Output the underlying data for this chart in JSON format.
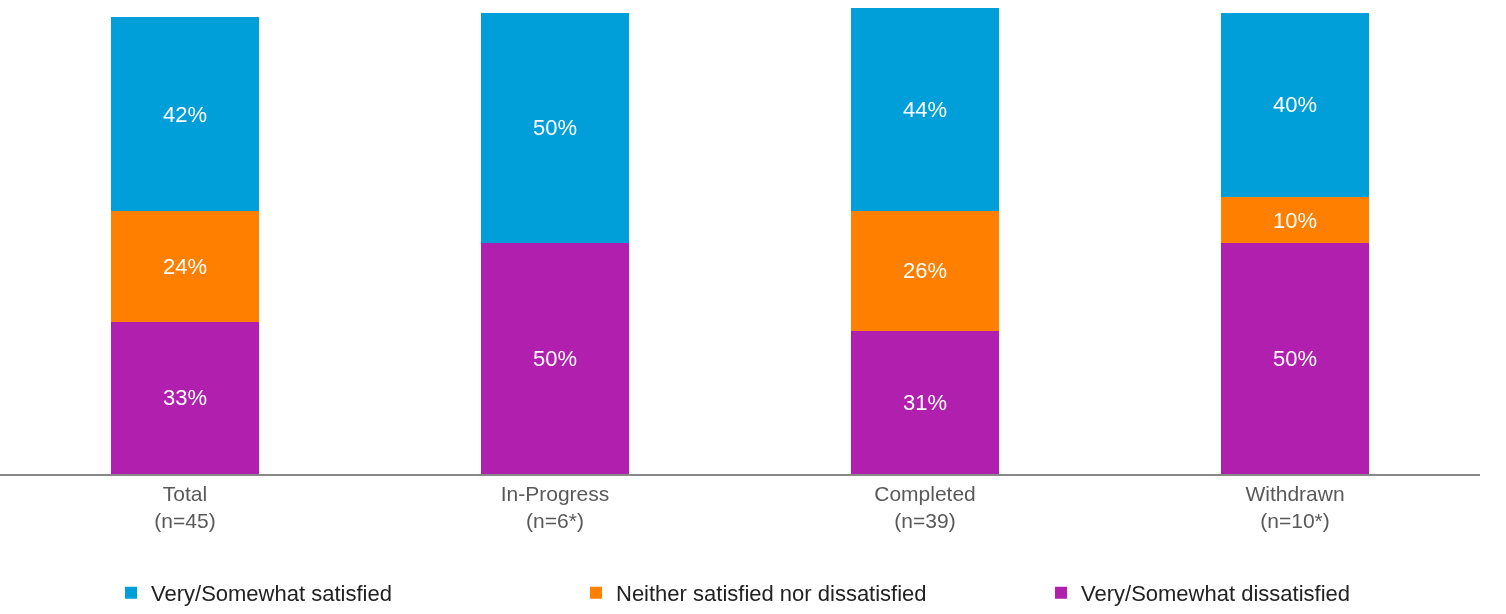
{
  "chart_data": {
    "type": "bar",
    "stacked": true,
    "categories": [
      "Total\n(n=45)",
      "In-Progress\n(n=6*)",
      "Completed\n(n=39)",
      "Withdrawn\n(n=10*)"
    ],
    "series": [
      {
        "name": "Very/Somewhat dissatisfied",
        "color": "#b01fad",
        "values": [
          33,
          50,
          31,
          50
        ],
        "value_labels": [
          "33%",
          "50%",
          "31%",
          "50%"
        ]
      },
      {
        "name": "Neither satisfied nor dissatisfied",
        "color": "#ff8000",
        "values": [
          24,
          0,
          26,
          10
        ],
        "value_labels": [
          "24%",
          null,
          "26%",
          "10%"
        ]
      },
      {
        "name": "Very/Somewhat satisfied",
        "color": "#009fda",
        "values": [
          42,
          50,
          44,
          40
        ],
        "value_labels": [
          "42%",
          "50%",
          "44%",
          "40%"
        ]
      }
    ],
    "legend": "bottom"
  }
}
